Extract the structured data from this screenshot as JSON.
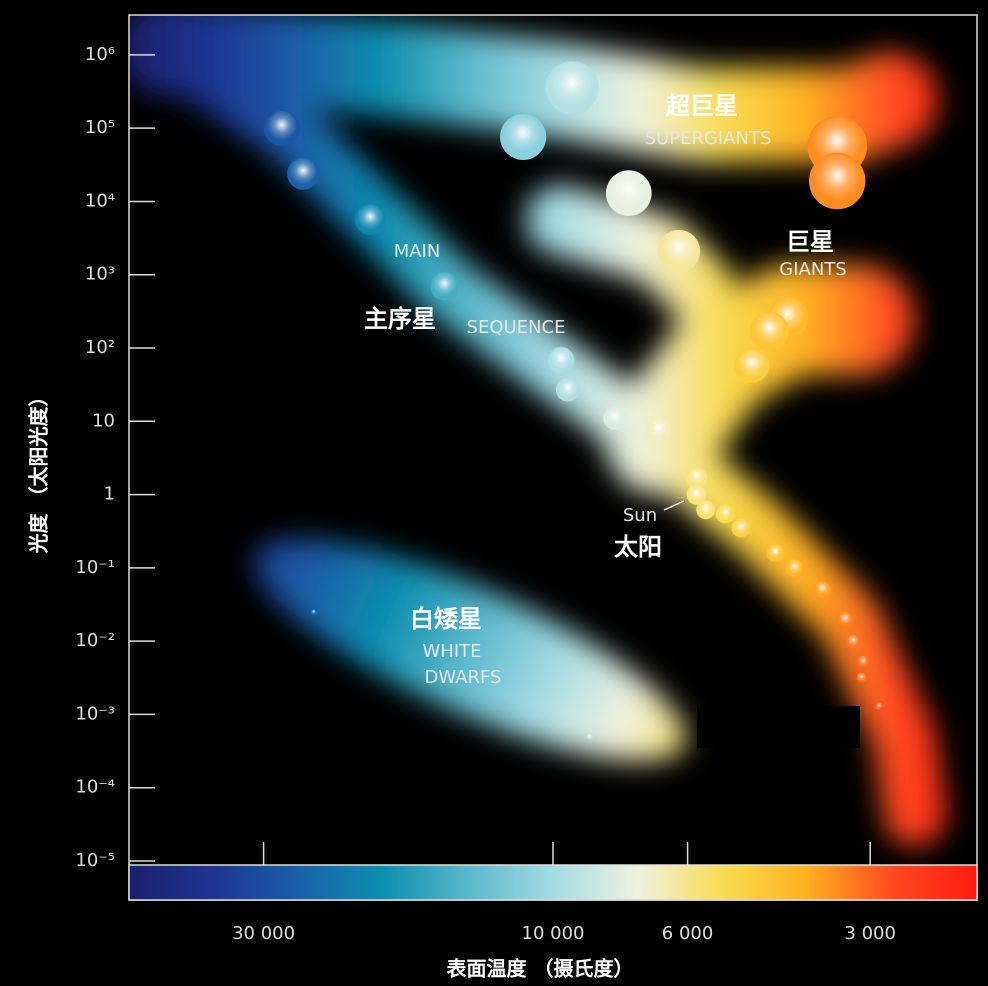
{
  "chart_data": {
    "type": "scatter",
    "y_label": "光度 （太阳光度）",
    "x_label": "表面温度 （摄氏度）",
    "annotations": {
      "supergiants_cn": "超巨星",
      "supergiants_en": "SUPERGIANTS",
      "giants_cn": "巨星",
      "giants_en": "GIANTS",
      "main": "MAIN",
      "main_sequence_cn": "主序星",
      "sequence": "SEQUENCE",
      "sun_en": "Sun",
      "sun_cn": "太阳",
      "white_dwarfs_cn": "白矮星",
      "white": "WHITE",
      "dwarfs": "DWARFS"
    },
    "x": [
      28000,
      25800,
      20000,
      15100,
      9700,
      9450,
      7900,
      6700,
      5800,
      5800,
      5600,
      5200,
      4900,
      4300,
      4000,
      3600,
      3300,
      3200,
      3080,
      3100,
      2900,
      9300,
      11200,
      7500,
      6200,
      3400,
      3400,
      4100,
      4400,
      4700,
      24800,
      8700
    ],
    "values": [
      100000,
      24000,
      5700,
      700,
      68,
      27,
      11,
      7.6,
      1.7,
      1,
      0.62,
      0.55,
      0.35,
      0.16,
      0.1,
      0.051,
      0.02,
      0.01,
      0.0053,
      0.0032,
      0.0013,
      355000,
      76000,
      13000,
      2100,
      57000,
      19000,
      260,
      170,
      58,
      0.025,
      0.0005
    ],
    "xlim": [
      50000,
      2000
    ],
    "ylim": [
      1e-05,
      3500000
    ],
    "log_x": true,
    "log_y": true,
    "xticks": [
      {
        "value": 30000,
        "label": "30 000"
      },
      {
        "value": 10000,
        "label": "10 000"
      },
      {
        "value": 6000,
        "label": "6 000"
      },
      {
        "value": 3000,
        "label": "3 000"
      }
    ],
    "yticks": [
      {
        "value": 1000000,
        "label": "10⁶"
      },
      {
        "value": 100000,
        "label": "10⁵"
      },
      {
        "value": 10000,
        "label": "10⁴"
      },
      {
        "value": 1000,
        "label": "10³"
      },
      {
        "value": 100,
        "label": "10²"
      },
      10,
      1,
      {
        "value": 0.1,
        "label": "10⁻¹"
      },
      {
        "value": 0.01,
        "label": "10⁻²"
      },
      {
        "value": 0.001,
        "label": "10⁻³"
      },
      {
        "value": 0.0001,
        "label": "10⁻⁴"
      },
      {
        "value": 1e-05,
        "label": "10⁻⁵"
      }
    ],
    "colormap": [
      "#1b1f6e",
      "#1e3590",
      "#1a5fa8",
      "#0d8fb0",
      "#5ab8cc",
      "#a3dbe4",
      "#f0f2e0",
      "#f8dc50",
      "#ffb020",
      "#ff4a20",
      "#ff1a10"
    ]
  }
}
